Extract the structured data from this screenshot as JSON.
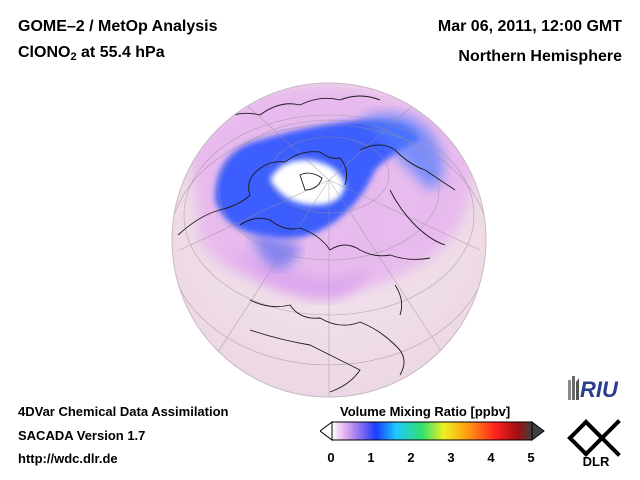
{
  "header": {
    "title_line1": "GOME–2 / MetOp Analysis",
    "title_species": "ClONO",
    "title_subscript": "2",
    "title_level": " at 55.4 hPa",
    "date": "Mar 06, 2011, 12:00 GMT",
    "hemisphere": "Northern Hemisphere"
  },
  "footer": {
    "line1": "4DVar Chemical Data Assimilation",
    "line2": "SACADA Version 1.7",
    "line3": "http://wdc.dlr.de"
  },
  "colorbar": {
    "title": "Volume Mixing Ratio [ppbv]",
    "ticks": [
      "0",
      "1",
      "2",
      "3",
      "4",
      "5"
    ],
    "range": [
      0,
      5
    ],
    "stops": [
      "#ffffff",
      "#e8b4f0",
      "#7a6cf0",
      "#1a3cff",
      "#20c8ff",
      "#30e070",
      "#f0f020",
      "#ff9a10",
      "#ff2020",
      "#a01010",
      "#404040"
    ]
  },
  "logos": {
    "riu": "RIU",
    "dlr": "DLR"
  },
  "colors": {
    "globe_background": "#f2e2e8",
    "low_ratio": "#e8a8f0",
    "vortex": "#2a55ff",
    "inner_vortex": "#ffffff"
  }
}
